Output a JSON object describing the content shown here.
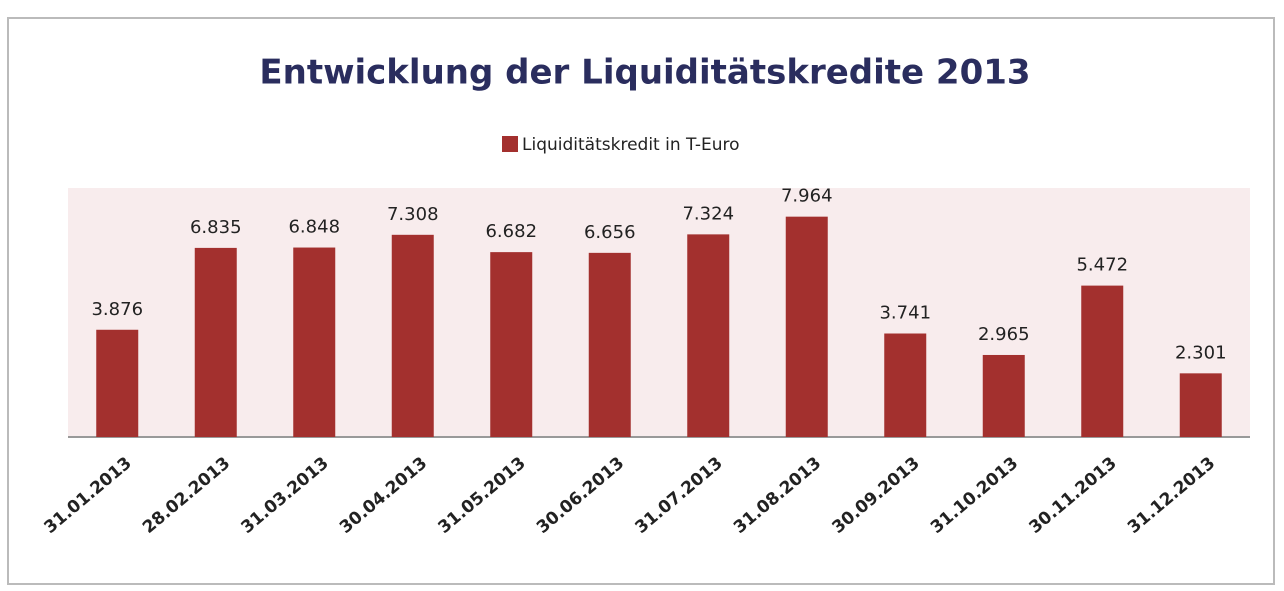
{
  "chart_data": {
    "type": "bar",
    "title": "Entwicklung der Liquiditätskredite 2013",
    "categories": [
      "31.01.2013",
      "28.02.2013",
      "31.03.2013",
      "30.04.2013",
      "31.05.2013",
      "30.06.2013",
      "31.07.2013",
      "31.08.2013",
      "30.09.2013",
      "31.10.2013",
      "30.11.2013",
      "31.12.2013"
    ],
    "series": [
      {
        "name": "Liquiditätskredit in T-Euro",
        "color": "#a3302e",
        "values": [
          3876,
          6835,
          6848,
          7308,
          6682,
          6656,
          7324,
          7964,
          3741,
          2965,
          5472,
          2301
        ],
        "value_labels": [
          "3.876",
          "6.835",
          "6.848",
          "7.308",
          "6.682",
          "6.656",
          "7.324",
          "7.964",
          "3.741",
          "2.965",
          "5.472",
          "2.301"
        ]
      }
    ],
    "ylim": [
      0,
      9000
    ]
  }
}
